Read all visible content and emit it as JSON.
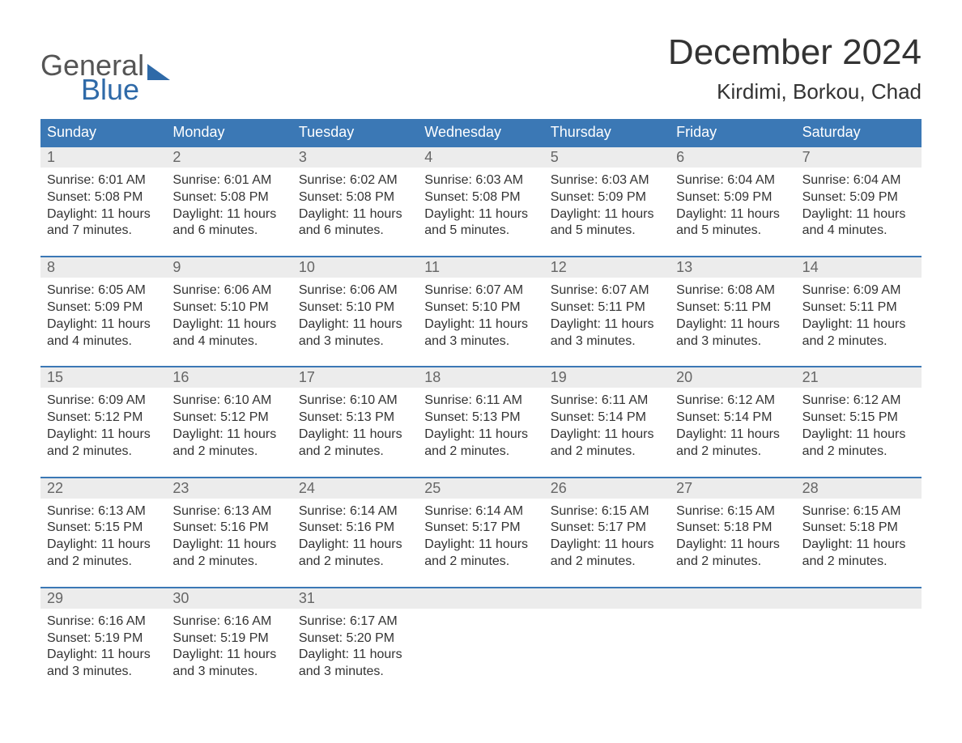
{
  "brand": {
    "general": "General",
    "blue": "Blue"
  },
  "title": "December 2024",
  "location": "Kirdimi, Borkou, Chad",
  "colors": {
    "headerBg": "#3b78b5",
    "dayBg": "#ececec",
    "accent": "#2f6aa8"
  },
  "dow": [
    "Sunday",
    "Monday",
    "Tuesday",
    "Wednesday",
    "Thursday",
    "Friday",
    "Saturday"
  ],
  "weeks": [
    [
      {
        "n": "1",
        "sr": "Sunrise: 6:01 AM",
        "ss": "Sunset: 5:08 PM",
        "d1": "Daylight: 11 hours",
        "d2": "and 7 minutes."
      },
      {
        "n": "2",
        "sr": "Sunrise: 6:01 AM",
        "ss": "Sunset: 5:08 PM",
        "d1": "Daylight: 11 hours",
        "d2": "and 6 minutes."
      },
      {
        "n": "3",
        "sr": "Sunrise: 6:02 AM",
        "ss": "Sunset: 5:08 PM",
        "d1": "Daylight: 11 hours",
        "d2": "and 6 minutes."
      },
      {
        "n": "4",
        "sr": "Sunrise: 6:03 AM",
        "ss": "Sunset: 5:08 PM",
        "d1": "Daylight: 11 hours",
        "d2": "and 5 minutes."
      },
      {
        "n": "5",
        "sr": "Sunrise: 6:03 AM",
        "ss": "Sunset: 5:09 PM",
        "d1": "Daylight: 11 hours",
        "d2": "and 5 minutes."
      },
      {
        "n": "6",
        "sr": "Sunrise: 6:04 AM",
        "ss": "Sunset: 5:09 PM",
        "d1": "Daylight: 11 hours",
        "d2": "and 5 minutes."
      },
      {
        "n": "7",
        "sr": "Sunrise: 6:04 AM",
        "ss": "Sunset: 5:09 PM",
        "d1": "Daylight: 11 hours",
        "d2": "and 4 minutes."
      }
    ],
    [
      {
        "n": "8",
        "sr": "Sunrise: 6:05 AM",
        "ss": "Sunset: 5:09 PM",
        "d1": "Daylight: 11 hours",
        "d2": "and 4 minutes."
      },
      {
        "n": "9",
        "sr": "Sunrise: 6:06 AM",
        "ss": "Sunset: 5:10 PM",
        "d1": "Daylight: 11 hours",
        "d2": "and 4 minutes."
      },
      {
        "n": "10",
        "sr": "Sunrise: 6:06 AM",
        "ss": "Sunset: 5:10 PM",
        "d1": "Daylight: 11 hours",
        "d2": "and 3 minutes."
      },
      {
        "n": "11",
        "sr": "Sunrise: 6:07 AM",
        "ss": "Sunset: 5:10 PM",
        "d1": "Daylight: 11 hours",
        "d2": "and 3 minutes."
      },
      {
        "n": "12",
        "sr": "Sunrise: 6:07 AM",
        "ss": "Sunset: 5:11 PM",
        "d1": "Daylight: 11 hours",
        "d2": "and 3 minutes."
      },
      {
        "n": "13",
        "sr": "Sunrise: 6:08 AM",
        "ss": "Sunset: 5:11 PM",
        "d1": "Daylight: 11 hours",
        "d2": "and 3 minutes."
      },
      {
        "n": "14",
        "sr": "Sunrise: 6:09 AM",
        "ss": "Sunset: 5:11 PM",
        "d1": "Daylight: 11 hours",
        "d2": "and 2 minutes."
      }
    ],
    [
      {
        "n": "15",
        "sr": "Sunrise: 6:09 AM",
        "ss": "Sunset: 5:12 PM",
        "d1": "Daylight: 11 hours",
        "d2": "and 2 minutes."
      },
      {
        "n": "16",
        "sr": "Sunrise: 6:10 AM",
        "ss": "Sunset: 5:12 PM",
        "d1": "Daylight: 11 hours",
        "d2": "and 2 minutes."
      },
      {
        "n": "17",
        "sr": "Sunrise: 6:10 AM",
        "ss": "Sunset: 5:13 PM",
        "d1": "Daylight: 11 hours",
        "d2": "and 2 minutes."
      },
      {
        "n": "18",
        "sr": "Sunrise: 6:11 AM",
        "ss": "Sunset: 5:13 PM",
        "d1": "Daylight: 11 hours",
        "d2": "and 2 minutes."
      },
      {
        "n": "19",
        "sr": "Sunrise: 6:11 AM",
        "ss": "Sunset: 5:14 PM",
        "d1": "Daylight: 11 hours",
        "d2": "and 2 minutes."
      },
      {
        "n": "20",
        "sr": "Sunrise: 6:12 AM",
        "ss": "Sunset: 5:14 PM",
        "d1": "Daylight: 11 hours",
        "d2": "and 2 minutes."
      },
      {
        "n": "21",
        "sr": "Sunrise: 6:12 AM",
        "ss": "Sunset: 5:15 PM",
        "d1": "Daylight: 11 hours",
        "d2": "and 2 minutes."
      }
    ],
    [
      {
        "n": "22",
        "sr": "Sunrise: 6:13 AM",
        "ss": "Sunset: 5:15 PM",
        "d1": "Daylight: 11 hours",
        "d2": "and 2 minutes."
      },
      {
        "n": "23",
        "sr": "Sunrise: 6:13 AM",
        "ss": "Sunset: 5:16 PM",
        "d1": "Daylight: 11 hours",
        "d2": "and 2 minutes."
      },
      {
        "n": "24",
        "sr": "Sunrise: 6:14 AM",
        "ss": "Sunset: 5:16 PM",
        "d1": "Daylight: 11 hours",
        "d2": "and 2 minutes."
      },
      {
        "n": "25",
        "sr": "Sunrise: 6:14 AM",
        "ss": "Sunset: 5:17 PM",
        "d1": "Daylight: 11 hours",
        "d2": "and 2 minutes."
      },
      {
        "n": "26",
        "sr": "Sunrise: 6:15 AM",
        "ss": "Sunset: 5:17 PM",
        "d1": "Daylight: 11 hours",
        "d2": "and 2 minutes."
      },
      {
        "n": "27",
        "sr": "Sunrise: 6:15 AM",
        "ss": "Sunset: 5:18 PM",
        "d1": "Daylight: 11 hours",
        "d2": "and 2 minutes."
      },
      {
        "n": "28",
        "sr": "Sunrise: 6:15 AM",
        "ss": "Sunset: 5:18 PM",
        "d1": "Daylight: 11 hours",
        "d2": "and 2 minutes."
      }
    ],
    [
      {
        "n": "29",
        "sr": "Sunrise: 6:16 AM",
        "ss": "Sunset: 5:19 PM",
        "d1": "Daylight: 11 hours",
        "d2": "and 3 minutes."
      },
      {
        "n": "30",
        "sr": "Sunrise: 6:16 AM",
        "ss": "Sunset: 5:19 PM",
        "d1": "Daylight: 11 hours",
        "d2": "and 3 minutes."
      },
      {
        "n": "31",
        "sr": "Sunrise: 6:17 AM",
        "ss": "Sunset: 5:20 PM",
        "d1": "Daylight: 11 hours",
        "d2": "and 3 minutes."
      },
      null,
      null,
      null,
      null
    ]
  ]
}
